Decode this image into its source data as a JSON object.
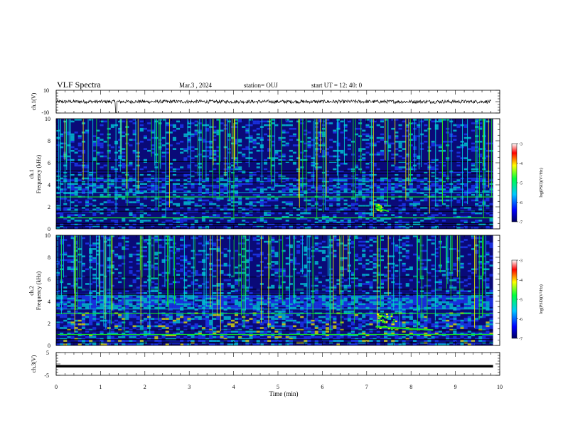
{
  "header": {
    "title": "VLF Spectra",
    "date": "Mar.3  , 2024",
    "station": "station= OUJ",
    "start": "start  UT  =   12: 40: 0"
  },
  "colors": {
    "spectrogram_background": "#0a0a78",
    "blue": "#1f3cff",
    "cyan": "#00d8e0",
    "green": "#14e61e",
    "yellow": "#f0f000",
    "red": "#ff1a1a",
    "trace": "#000000"
  },
  "chart_data": [
    {
      "panel": "ch1",
      "type": "line",
      "ylabel": "ch.1(V)",
      "ylim": [
        -10,
        10
      ],
      "ytick_labels": [
        "10",
        "-10"
      ],
      "baseline_value": 0,
      "noise_amplitude": 1.5
    },
    {
      "panel": "ch1-spectrogram",
      "type": "heatmap",
      "ylabel": "ch.1\nFrequency  (kHz)",
      "ylabel_lines": [
        "ch.1",
        "Frequency  (kHz)"
      ],
      "ylim": [
        0,
        10
      ],
      "ytick_labels": [
        "0",
        "2",
        "4",
        "6",
        "8",
        "10"
      ],
      "colorbar": {
        "label": "log(PSD)(V²/Hz)",
        "range": [
          -7,
          -3
        ],
        "tick_labels": [
          "-3",
          "-4",
          "-5",
          "-6",
          "-7"
        ]
      },
      "features": [
        {
          "name": "band 5.5-6.5 kHz",
          "frequency_khz": [
            5.5,
            6.5
          ]
        },
        {
          "name": "tone 2.9 kHz",
          "frequency_khz": 2.9
        },
        {
          "name": "tone 3.3 kHz",
          "frequency_khz": 3.3
        },
        {
          "name": "emission near 7.2-7.5 min",
          "time_min": [
            7.2,
            7.5
          ],
          "frequency_khz": [
            1.7,
            2.3
          ]
        }
      ]
    },
    {
      "panel": "ch2-spectrogram",
      "type": "heatmap",
      "ylabel": "ch.2\nFrequency  (kHz)",
      "ylabel_lines": [
        "ch.2",
        "Frequency  (kHz)"
      ],
      "ylim": [
        0,
        10
      ],
      "ytick_labels": [
        "0",
        "2",
        "4",
        "6",
        "8",
        "10"
      ],
      "colorbar": {
        "label": "log(PSD)(V²/Hz)",
        "range": [
          -7,
          -3
        ],
        "tick_labels": [
          "-3",
          "-4",
          "-5",
          "-6",
          "-7"
        ]
      },
      "features": [
        {
          "name": "band 5.5-6.5 kHz",
          "frequency_khz": [
            5.5,
            6.5
          ]
        },
        {
          "name": "tone 1.0 kHz",
          "frequency_khz": 1.0
        },
        {
          "name": "emission near 7.2-8.5 min",
          "time_min": [
            7.2,
            8.5
          ],
          "frequency_khz": [
            1.5,
            3.0
          ]
        }
      ]
    },
    {
      "panel": "ch3",
      "type": "line",
      "ylabel": "ch.3(V)",
      "ylim": [
        -5,
        5
      ],
      "ytick_labels": [
        "5",
        "-5"
      ],
      "baseline_value": -1
    }
  ],
  "x_axis": {
    "label": "Time  (min)",
    "range": [
      0,
      10
    ],
    "tick_labels": [
      "0",
      "1",
      "2",
      "3",
      "4",
      "5",
      "6",
      "7",
      "8",
      "9",
      "10"
    ]
  }
}
